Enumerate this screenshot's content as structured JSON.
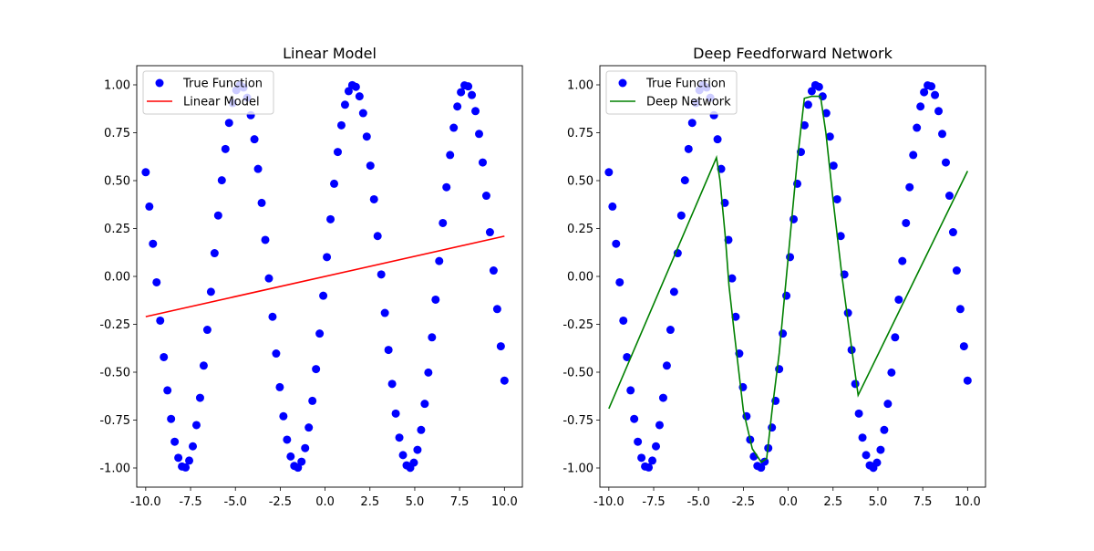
{
  "chart_data": [
    {
      "type": "scatter",
      "title": "Linear Model",
      "xlabel": "",
      "ylabel": "",
      "xlim": [
        -10.5,
        11.0
      ],
      "ylim": [
        -1.1,
        1.1
      ],
      "x_ticks": [
        -10.0,
        -7.5,
        -5.0,
        -2.5,
        0.0,
        2.5,
        5.0,
        7.5,
        10.0
      ],
      "x_tick_labels": [
        "-10.0",
        "-7.5",
        "-5.0",
        "-2.5",
        "0.0",
        "2.5",
        "5.0",
        "7.5",
        "10.0"
      ],
      "y_ticks": [
        -1.0,
        -0.75,
        -0.5,
        -0.25,
        0.0,
        0.25,
        0.5,
        0.75,
        1.0
      ],
      "y_tick_labels": [
        "-1.00",
        "-0.75",
        "-0.50",
        "-0.25",
        "0.00",
        "0.25",
        "0.50",
        "0.75",
        "1.00"
      ],
      "legend": {
        "placement": "top-left"
      },
      "series": [
        {
          "name": "True Function",
          "kind": "scatter",
          "color": "#0000ff",
          "sampling": "y = sin(x), 100 evenly spaced samples, x from -10 to 10"
        },
        {
          "name": "Linear Model",
          "kind": "line",
          "color": "#ff0000",
          "x": [
            -10,
            10
          ],
          "y": [
            -0.21,
            0.21
          ]
        }
      ]
    },
    {
      "type": "scatter",
      "title": "Deep Feedforward Network",
      "xlabel": "",
      "ylabel": "",
      "xlim": [
        -10.5,
        11.0
      ],
      "ylim": [
        -1.1,
        1.1
      ],
      "x_ticks": [
        -10.0,
        -7.5,
        -5.0,
        -2.5,
        0.0,
        2.5,
        5.0,
        7.5,
        10.0
      ],
      "x_tick_labels": [
        "-10.0",
        "-7.5",
        "-5.0",
        "-2.5",
        "0.0",
        "2.5",
        "5.0",
        "7.5",
        "10.0"
      ],
      "y_ticks": [
        -1.0,
        -0.75,
        -0.5,
        -0.25,
        0.0,
        0.25,
        0.5,
        0.75,
        1.0
      ],
      "y_tick_labels": [
        "-1.00",
        "-0.75",
        "-0.50",
        "-0.25",
        "0.00",
        "0.25",
        "0.50",
        "0.75",
        "1.00"
      ],
      "legend": {
        "placement": "top-left"
      },
      "series": [
        {
          "name": "True Function",
          "kind": "scatter",
          "color": "#0000ff",
          "sampling": "y = sin(x), 100 evenly spaced samples, x from -10 to 10"
        },
        {
          "name": "Deep Network",
          "kind": "line",
          "color": "#008000",
          "x": [
            -10.0,
            -4.0,
            -3.8,
            -3.5,
            -3.3,
            -3.0,
            -2.5,
            -2.0,
            -1.5,
            -1.2,
            -0.9,
            -0.5,
            0.0,
            0.5,
            0.9,
            1.3,
            1.8,
            2.1,
            2.5,
            3.0,
            3.5,
            3.9,
            10.0
          ],
          "y": [
            -0.69,
            0.62,
            0.5,
            0.2,
            -0.05,
            -0.3,
            -0.7,
            -0.9,
            -0.97,
            -0.95,
            -0.7,
            -0.4,
            0.1,
            0.6,
            0.93,
            0.94,
            0.94,
            0.75,
            0.4,
            0.0,
            -0.35,
            -0.62,
            0.55
          ]
        }
      ]
    }
  ]
}
